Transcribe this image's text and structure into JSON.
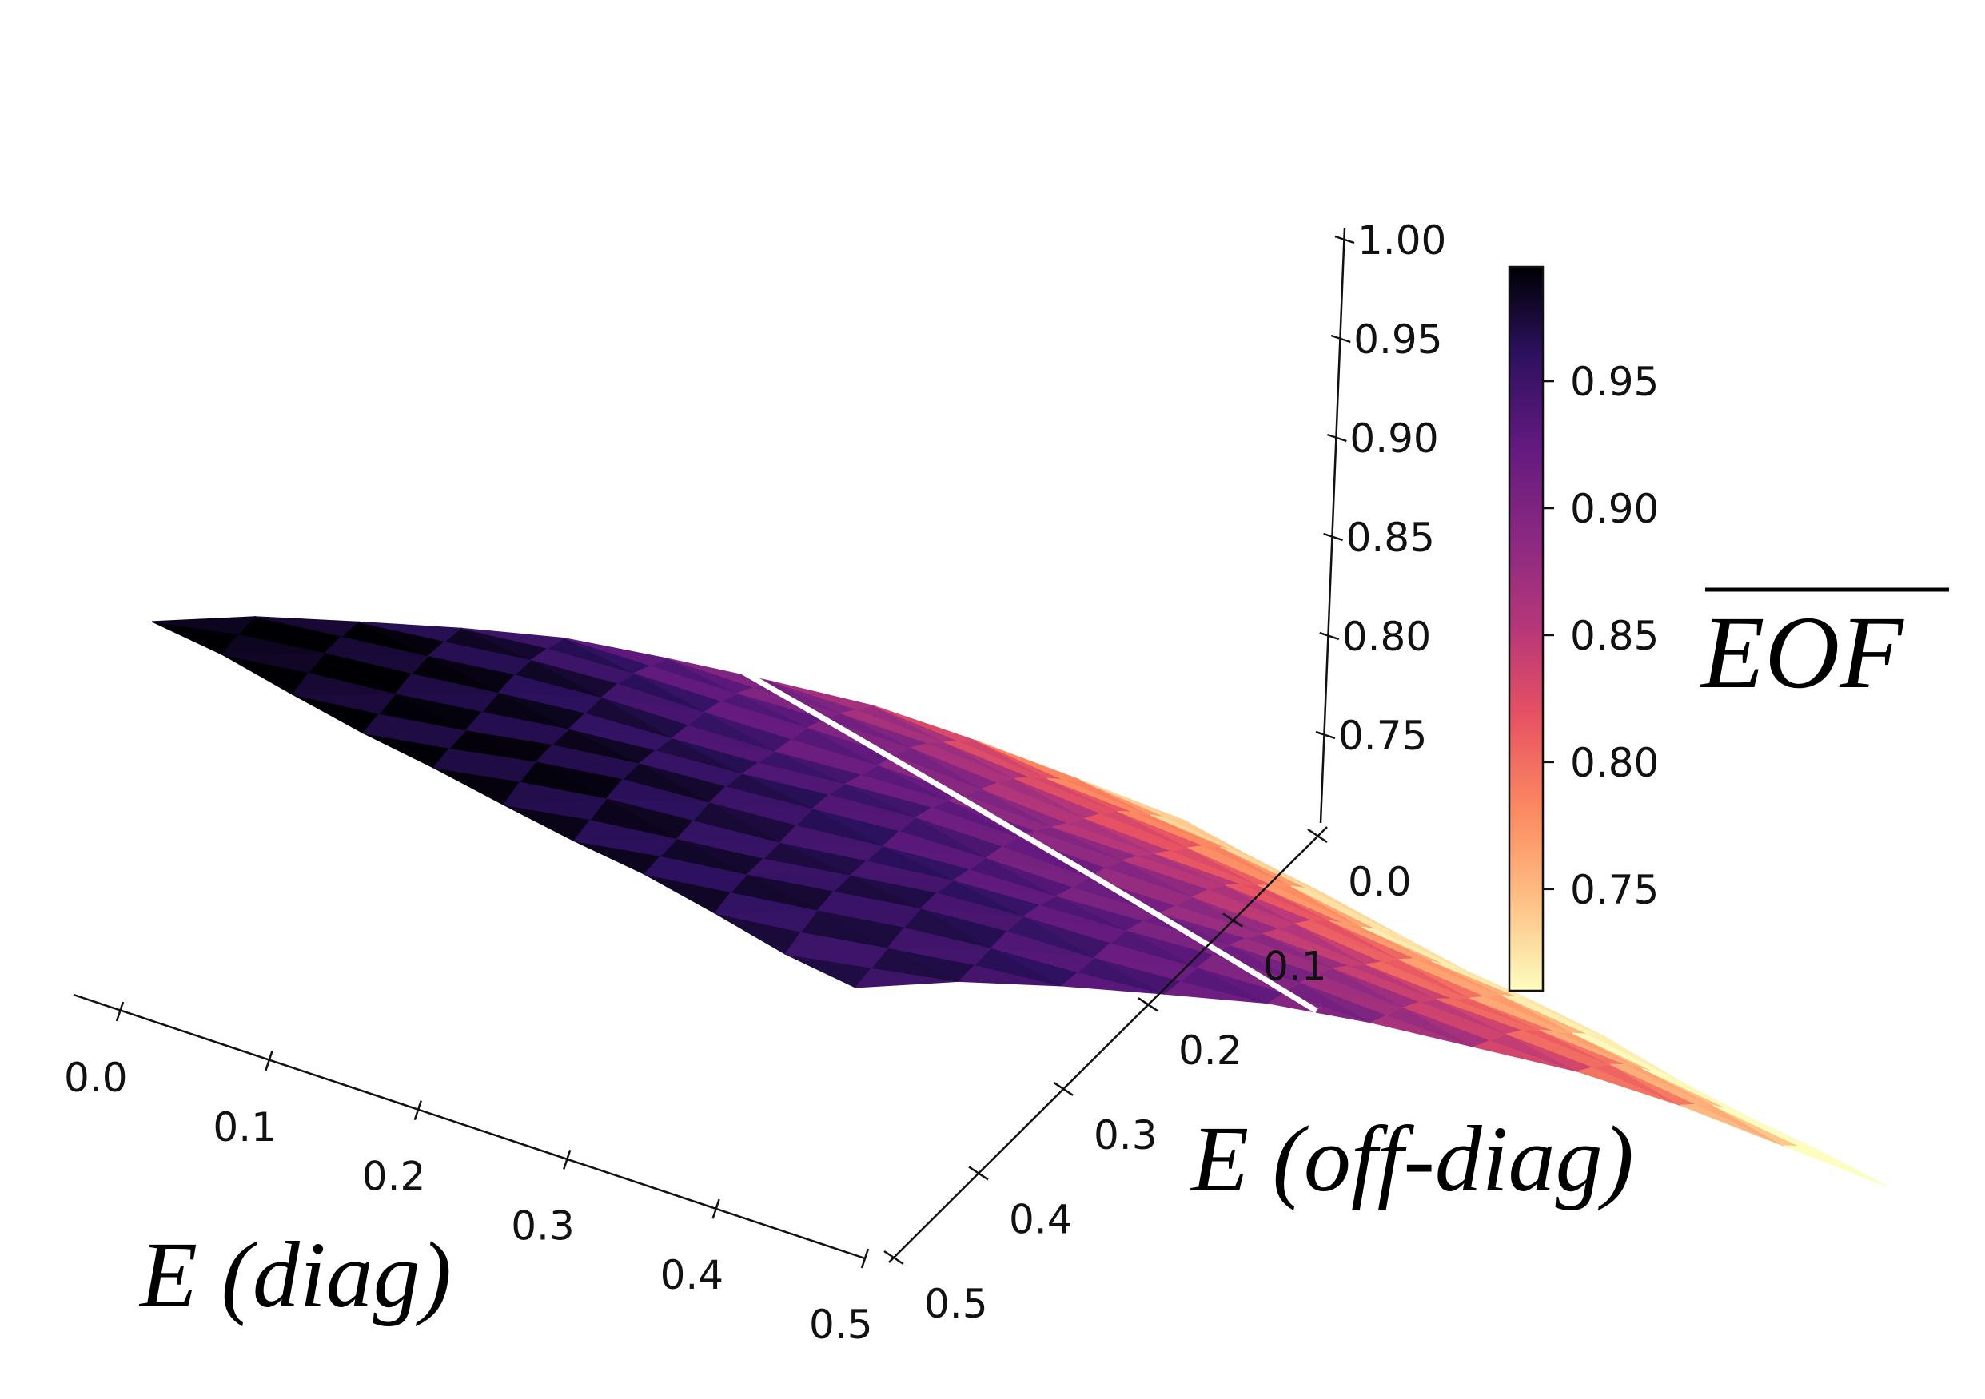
{
  "chart_data": {
    "type": "surface3d",
    "title": "",
    "colormap": "magma",
    "x_axis": {
      "label": "E (diag)",
      "ticks": [
        "0.0",
        "0.1",
        "0.2",
        "0.3",
        "0.4",
        "0.5"
      ],
      "range": [
        0.0,
        0.5
      ]
    },
    "y_axis": {
      "label": "E (off-diag)",
      "ticks": [
        "0.0",
        "0.1",
        "0.2",
        "0.3",
        "0.4",
        "0.5"
      ],
      "range": [
        0.0,
        0.5
      ]
    },
    "z_axis": {
      "label": "",
      "ticks": [
        "0.75",
        "0.80",
        "0.85",
        "0.90",
        "0.95",
        "1.00"
      ],
      "range": [
        0.71,
        1.0
      ]
    },
    "colorbar": {
      "label": "EOF",
      "label_overline": true,
      "ticks": [
        "0.75",
        "0.80",
        "0.85",
        "0.90",
        "0.95"
      ],
      "range": [
        0.71,
        0.995
      ]
    },
    "surface_model": "EOF ≈ 0.995 - 0.07*x - 1.1*y^2 (x = E diag, y = E off-diag), with small faceted variations",
    "grid_points_per_axis": 11,
    "contour": {
      "level": 0.905,
      "color": "#ffffff"
    }
  }
}
